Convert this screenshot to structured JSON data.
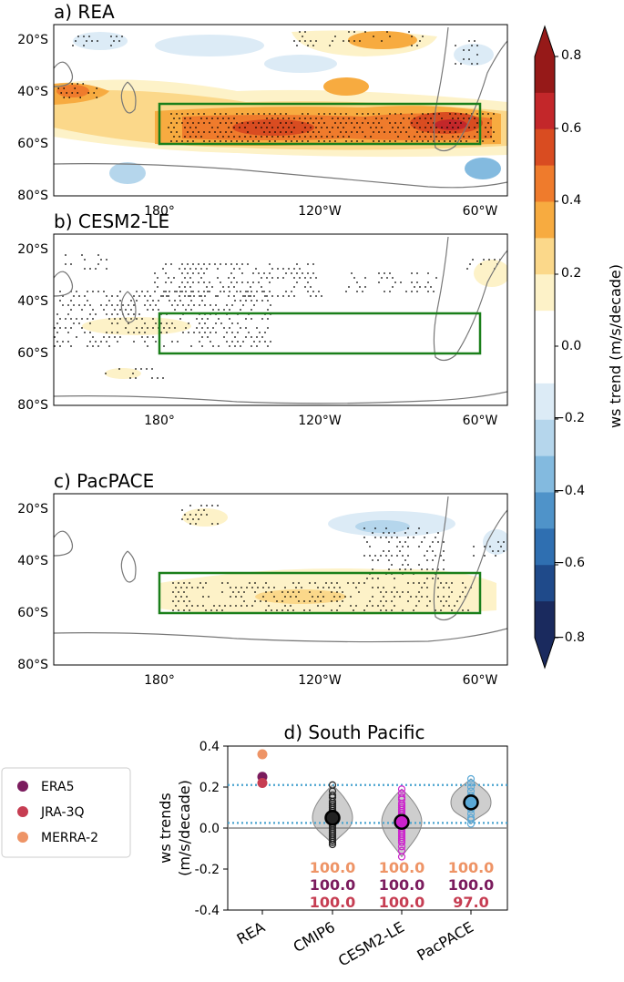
{
  "colors": {
    "coast": "#777777",
    "box": "#1a7f1a",
    "scale": [
      "#1a2a5e",
      "#1f4a8a",
      "#2f6fb1",
      "#4f93c9",
      "#83badf",
      "#b5d6ec",
      "#dcebf6",
      "#ffffff",
      "#ffffff",
      "#fdf2c8",
      "#fbd88a",
      "#f7ab40",
      "#ef7b2c",
      "#d94c21",
      "#c3272a",
      "#961918"
    ],
    "era5": "#7b1c5e",
    "jra3q": "#c63d52",
    "merra2": "#ee9466",
    "cmip6": "#222222",
    "cesm2": "#cc22cc",
    "pacpace": "#5aa8d6",
    "dotline": "#4aa3cf",
    "violin": "#bdbdbd"
  },
  "maps": [
    {
      "label": "a) REA"
    },
    {
      "label": "b) CESM2-LE"
    },
    {
      "label": "c) PacPACE"
    }
  ],
  "map_axes": {
    "lat_ticks": [
      "20°S",
      "40°S",
      "60°S",
      "80°S"
    ],
    "lon_ticks": [
      "180°",
      "120°W",
      "60°W"
    ]
  },
  "colorbar": {
    "label": "ws trend (m/s/decade)",
    "ticks": [
      "0.8",
      "0.6",
      "0.4",
      "0.2",
      "0.0",
      "−0.2",
      "−0.4",
      "−0.6",
      "−0.8"
    ]
  },
  "legend": {
    "items": [
      {
        "name": "ERA5",
        "color_key": "era5"
      },
      {
        "name": "JRA-3Q",
        "color_key": "jra3q"
      },
      {
        "name": "MERRA-2",
        "color_key": "merra2"
      }
    ]
  },
  "chart_data": [
    {
      "type": "heatmap",
      "title": "a) REA",
      "xlabel": "",
      "ylabel": "",
      "x_ticks": [
        "180°",
        "120°W",
        "60°W"
      ],
      "y_ticks": [
        "20°S",
        "40°S",
        "60°S",
        "80°S"
      ],
      "colorbar_range": [
        -0.8,
        0.8
      ],
      "colorbar_label": "ws trend (m/s/decade)",
      "box": {
        "lat": [
          -60,
          -45
        ],
        "lon": [
          -180,
          -60
        ]
      }
    },
    {
      "type": "heatmap",
      "title": "b) CESM2-LE",
      "x_ticks": [
        "180°",
        "120°W",
        "60°W"
      ],
      "y_ticks": [
        "20°S",
        "40°S",
        "60°S",
        "80°S"
      ],
      "colorbar_range": [
        -0.8,
        0.8
      ],
      "box": {
        "lat": [
          -60,
          -45
        ],
        "lon": [
          -180,
          -60
        ]
      }
    },
    {
      "type": "heatmap",
      "title": "c) PacPACE",
      "x_ticks": [
        "180°",
        "120°W",
        "60°W"
      ],
      "y_ticks": [
        "20°S",
        "40°S",
        "60°S",
        "80°S"
      ],
      "colorbar_range": [
        -0.8,
        0.8
      ],
      "box": {
        "lat": [
          -60,
          -45
        ],
        "lon": [
          -180,
          -60
        ]
      }
    },
    {
      "type": "scatter",
      "title": "d) South Pacific",
      "xlabel": "",
      "ylabel": "ws trends (m/s/decade)",
      "ylabel_lines": [
        "ws trends",
        "(m/s/decade)"
      ],
      "ylim": [
        -0.4,
        0.4
      ],
      "y_ticks": [
        0.4,
        0.2,
        0.0,
        -0.2,
        -0.4
      ],
      "y_tick_labels": [
        "0.4",
        "0.2",
        "0.0",
        "-0.2",
        "-0.4"
      ],
      "categories": [
        "REA",
        "CMIP6",
        "CESM2-LE",
        "PacPACE"
      ],
      "rea_points": [
        {
          "name": "ERA5",
          "value": 0.25
        },
        {
          "name": "JRA-3Q",
          "value": 0.22
        },
        {
          "name": "MERRA-2",
          "value": 0.36
        }
      ],
      "reference_lines": [
        0.21,
        0.025
      ],
      "ensembles": [
        {
          "name": "CMIP6",
          "mean": 0.05,
          "min": -0.08,
          "max": 0.21,
          "members": [
            0.21,
            0.18,
            0.16,
            0.15,
            0.13,
            0.12,
            0.11,
            0.1,
            0.09,
            0.08,
            0.07,
            0.06,
            0.05,
            0.05,
            0.04,
            0.03,
            0.02,
            0.01,
            0.0,
            -0.01,
            -0.02,
            -0.03,
            -0.04,
            -0.05,
            -0.06,
            -0.07,
            -0.08
          ]
        },
        {
          "name": "CESM2-LE",
          "mean": 0.03,
          "min": -0.14,
          "max": 0.19,
          "members": [
            0.19,
            0.17,
            0.15,
            0.14,
            0.12,
            0.11,
            0.1,
            0.09,
            0.08,
            0.07,
            0.06,
            0.06,
            0.05,
            0.05,
            0.04,
            0.04,
            0.03,
            0.03,
            0.02,
            0.02,
            0.01,
            0.01,
            0.0,
            0.0,
            -0.01,
            -0.02,
            -0.03,
            -0.04,
            -0.05,
            -0.06,
            -0.07,
            -0.09,
            -0.11,
            -0.14
          ]
        },
        {
          "name": "PacPACE",
          "mean": 0.125,
          "min": 0.02,
          "max": 0.24,
          "members": [
            0.24,
            0.22,
            0.2,
            0.18,
            0.16,
            0.15,
            0.14,
            0.13,
            0.12,
            0.11,
            0.1,
            0.09,
            0.07,
            0.05,
            0.04,
            0.02
          ]
        }
      ],
      "percentages": [
        {
          "category": "CMIP6",
          "merra2": "100.0",
          "era5": "100.0",
          "jra3q": "100.0"
        },
        {
          "category": "CESM2-LE",
          "merra2": "100.0",
          "era5": "100.0",
          "jra3q": "100.0"
        },
        {
          "category": "PacPACE",
          "merra2": "100.0",
          "era5": "100.0",
          "jra3q": "97.0"
        }
      ]
    }
  ]
}
